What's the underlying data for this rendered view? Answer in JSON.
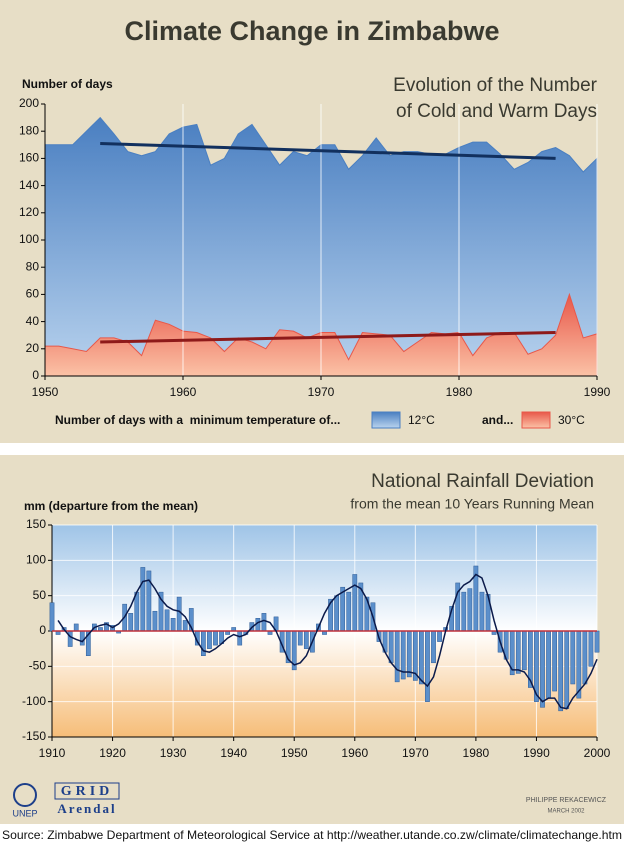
{
  "title": "Climate Change in Zimbabwe",
  "chart_data": [
    {
      "type": "area",
      "title": [
        "Evolution of the Number",
        "of Cold and Warm Days"
      ],
      "y_label": "Number of days",
      "legend_label": "Number of days with a  minimum temperature of...",
      "legend_joiner": "and...",
      "x": [
        1950,
        1951,
        1952,
        1953,
        1954,
        1955,
        1956,
        1957,
        1958,
        1959,
        1960,
        1961,
        1962,
        1963,
        1964,
        1965,
        1966,
        1967,
        1968,
        1969,
        1970,
        1971,
        1972,
        1973,
        1974,
        1975,
        1976,
        1977,
        1978,
        1979,
        1980,
        1981,
        1982,
        1983,
        1984,
        1985,
        1986,
        1987,
        1988,
        1989,
        1990
      ],
      "series": [
        {
          "name": "12°C",
          "color": "#4a7fc1",
          "light": "#b9d3ee",
          "values": [
            170,
            170,
            170,
            180,
            190,
            178,
            165,
            162,
            165,
            178,
            183,
            185,
            155,
            160,
            178,
            185,
            170,
            155,
            165,
            162,
            170,
            170,
            152,
            162,
            175,
            162,
            165,
            165,
            163,
            163,
            168,
            172,
            172,
            163,
            152,
            157,
            165,
            168,
            162,
            150,
            160
          ],
          "trend": {
            "x": [
              1954,
              1987
            ],
            "values": [
              171,
              160
            ],
            "color": "#12305e"
          }
        },
        {
          "name": "30°C",
          "color": "#e8584a",
          "light": "#fbc2a6",
          "values": [
            22,
            22,
            20,
            18,
            28,
            28,
            25,
            15,
            41,
            38,
            33,
            32,
            28,
            18,
            28,
            25,
            20,
            34,
            33,
            28,
            32,
            32,
            12,
            32,
            31,
            30,
            18,
            25,
            32,
            31,
            32,
            15,
            28,
            32,
            32,
            16,
            20,
            30,
            60,
            28,
            31
          ],
          "trend": {
            "x": [
              1954,
              1987
            ],
            "values": [
              25,
              32
            ],
            "color": "#8e1a1a"
          }
        }
      ],
      "xlim": [
        1950,
        1990
      ],
      "xticks": [
        1950,
        1960,
        1970,
        1980,
        1990
      ],
      "ylim": [
        0,
        200
      ],
      "yticks": [
        0,
        20,
        40,
        60,
        80,
        100,
        120,
        140,
        160,
        180,
        200
      ],
      "grid": "x"
    },
    {
      "type": "bar",
      "title": [
        "National Rainfall Deviation"
      ],
      "subtitle": "from the mean 10 Years Running Mean",
      "y_label": "mm (departure from the mean)",
      "x": [
        1910,
        1911,
        1912,
        1913,
        1914,
        1915,
        1916,
        1917,
        1918,
        1919,
        1920,
        1921,
        1922,
        1923,
        1924,
        1925,
        1926,
        1927,
        1928,
        1929,
        1930,
        1931,
        1932,
        1933,
        1934,
        1935,
        1936,
        1937,
        1938,
        1939,
        1940,
        1941,
        1942,
        1943,
        1944,
        1945,
        1946,
        1947,
        1948,
        1949,
        1950,
        1951,
        1952,
        1953,
        1954,
        1955,
        1956,
        1957,
        1958,
        1959,
        1960,
        1961,
        1962,
        1963,
        1964,
        1965,
        1966,
        1967,
        1968,
        1969,
        1970,
        1971,
        1972,
        1973,
        1974,
        1975,
        1976,
        1977,
        1978,
        1979,
        1980,
        1981,
        1982,
        1983,
        1984,
        1985,
        1986,
        1987,
        1988,
        1989,
        1990,
        1991,
        1992,
        1993,
        1994,
        1995,
        1996,
        1997,
        1998,
        1999,
        2000
      ],
      "series": [
        {
          "kind": "bar",
          "color": "#5b8fcb",
          "values": [
            40,
            -5,
            5,
            -22,
            10,
            -20,
            -35,
            10,
            5,
            12,
            8,
            -3,
            38,
            25,
            55,
            90,
            85,
            28,
            55,
            30,
            18,
            48,
            15,
            32,
            -20,
            -35,
            -25,
            -20,
            -18,
            -5,
            5,
            -20,
            -5,
            12,
            18,
            25,
            -5,
            20,
            -30,
            -45,
            -55,
            -20,
            -25,
            -30,
            10,
            -5,
            45,
            50,
            62,
            55,
            80,
            68,
            48,
            40,
            -15,
            -30,
            -45,
            -72,
            -68,
            -65,
            -70,
            -75,
            -100,
            -45,
            -15,
            5,
            35,
            68,
            55,
            60,
            92,
            55,
            52,
            -5,
            -30,
            -40,
            -62,
            -60,
            -55,
            -80,
            -100,
            -108,
            -95,
            -85,
            -113,
            -110,
            -75,
            -95,
            -75,
            -50,
            -30
          ]
        },
        {
          "kind": "line",
          "color": "#0b1a4a",
          "values": [
            null,
            15,
            2,
            -8,
            -12,
            -15,
            -5,
            5,
            8,
            10,
            5,
            10,
            20,
            35,
            55,
            70,
            72,
            60,
            45,
            35,
            30,
            28,
            20,
            5,
            -15,
            -28,
            -30,
            -25,
            -18,
            -10,
            -5,
            -8,
            -5,
            5,
            12,
            15,
            12,
            0,
            -20,
            -40,
            -48,
            -45,
            -35,
            -15,
            5,
            25,
            40,
            50,
            55,
            60,
            65,
            60,
            45,
            20,
            -10,
            -30,
            -45,
            -55,
            -58,
            -58,
            -60,
            -70,
            -78,
            -65,
            -35,
            0,
            30,
            55,
            65,
            70,
            80,
            75,
            50,
            15,
            -15,
            -40,
            -55,
            -55,
            -58,
            -70,
            -90,
            -100,
            -95,
            -95,
            -108,
            -110,
            -95,
            -85,
            -75,
            -60,
            -40
          ]
        }
      ],
      "zero_line_color": "#c0303a",
      "xlim": [
        1910,
        2000
      ],
      "xticks": [
        1910,
        1920,
        1930,
        1940,
        1950,
        1960,
        1970,
        1980,
        1990,
        2000
      ],
      "ylim": [
        -150,
        150
      ],
      "yticks": [
        -150,
        -100,
        -50,
        0,
        50,
        100,
        150
      ],
      "grid": "both"
    }
  ],
  "logos": [
    "UNEP",
    "GRID",
    "Arendal"
  ],
  "credits": [
    "PHILIPPE REKACEWICZ",
    "MARCH 2002"
  ],
  "source": "Source: Zimbabwe Department of Meteorological Service at http://weather.utande.co.zw/climate/climatechange.htm"
}
